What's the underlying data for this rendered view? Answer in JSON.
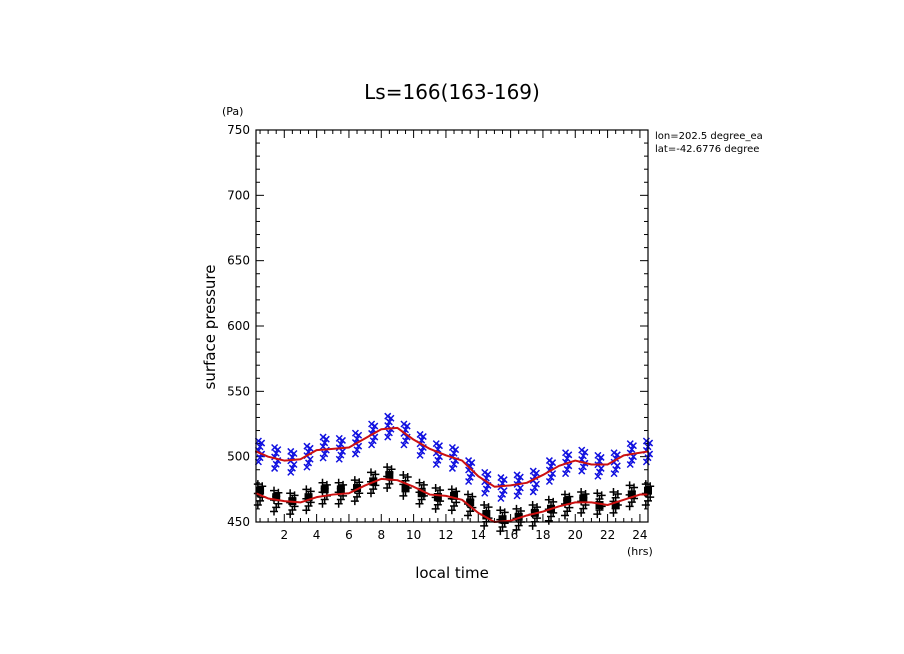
{
  "chart_data": {
    "type": "scatter",
    "title": "Ls=166(163-169)",
    "ylabel": "surface pressure",
    "yunit": "(Pa)",
    "xlabel": "local time",
    "xunit": "(hrs)",
    "annotation": [
      "lon=202.5 degree_ea",
      "lat=-42.6776 degree"
    ],
    "xlim": [
      0.25,
      24.5
    ],
    "ylim": [
      450,
      750
    ],
    "yticks": [
      450,
      500,
      550,
      600,
      650,
      700,
      750
    ],
    "xticks": [
      2,
      4,
      6,
      8,
      10,
      12,
      14,
      16,
      18,
      20,
      22,
      24
    ],
    "colors": {
      "blue": "#1010e0",
      "red": "#cc1010",
      "black": "#000000"
    },
    "series": [
      {
        "marker": "x",
        "color": "#1010e0",
        "x": [
          0.5,
          1.5,
          2.5,
          3.5,
          4.5,
          5.5,
          6.5,
          7.5,
          8.5,
          9.5,
          10.5,
          11.5,
          12.5,
          13.5,
          14.5,
          15.5,
          16.5,
          17.5,
          18.5,
          19.5,
          20.5,
          21.5,
          22.5,
          23.5,
          24.5
        ],
        "center": [
          504,
          499,
          496,
          500,
          507,
          506,
          510,
          517,
          523,
          517,
          509,
          502,
          499,
          489,
          480,
          476,
          478,
          481,
          489,
          495,
          497,
          493,
          495,
          502,
          504
        ],
        "spread": 8
      },
      {
        "marker": "+",
        "color": "#000000",
        "x": [
          0.5,
          1.5,
          2.5,
          3.5,
          4.5,
          5.5,
          6.5,
          7.5,
          8.5,
          9.5,
          10.5,
          11.5,
          12.5,
          13.5,
          14.5,
          15.5,
          16.5,
          17.5,
          18.5,
          19.5,
          20.5,
          21.5,
          22.5,
          23.5,
          24.5
        ],
        "center": [
          471,
          466,
          464,
          467,
          472,
          472,
          474,
          480,
          484,
          478,
          472,
          468,
          467,
          463,
          455,
          451,
          452,
          455,
          459,
          463,
          465,
          464,
          465,
          470,
          471
        ],
        "spread": 8
      },
      {
        "marker": "square",
        "color": "#000000",
        "x": [
          0.5,
          1.5,
          2.5,
          3.5,
          4.5,
          5.5,
          6.5,
          7.5,
          8.5,
          9.5,
          10.5,
          11.5,
          12.5,
          13.5,
          14.5,
          15.5,
          16.5,
          17.5,
          18.5,
          19.5,
          20.5,
          21.5,
          22.5,
          23.5,
          24.5
        ],
        "y": [
          474,
          469,
          466,
          469,
          475,
          475,
          476,
          481,
          486,
          476,
          472,
          469,
          470,
          465,
          455,
          452,
          454,
          457,
          460,
          466,
          468,
          463,
          463,
          471,
          474
        ]
      },
      {
        "marker": "line",
        "color": "#cc1010",
        "x": [
          0.25,
          1,
          2,
          3,
          4,
          5,
          6,
          7,
          8,
          9,
          10,
          11,
          12,
          13,
          14,
          15,
          16,
          17,
          18,
          19,
          20,
          21,
          22,
          23,
          24,
          24.5
        ],
        "y": [
          504,
          500,
          497,
          498,
          505,
          506,
          507,
          514,
          521,
          522,
          513,
          506,
          501,
          497,
          485,
          477,
          478,
          480,
          486,
          493,
          497,
          494,
          494,
          501,
          503,
          504
        ]
      },
      {
        "marker": "line",
        "color": "#cc1010",
        "x": [
          0.25,
          1,
          2,
          3,
          4,
          5,
          6,
          7,
          8,
          9,
          10,
          11,
          12,
          13,
          14,
          15,
          16,
          17,
          18,
          19,
          20,
          21,
          22,
          23,
          24,
          24.5
        ],
        "y": [
          472,
          468,
          466,
          465,
          469,
          471,
          472,
          478,
          483,
          482,
          477,
          471,
          470,
          467,
          457,
          450,
          451,
          455,
          458,
          462,
          465,
          465,
          463,
          467,
          471,
          471
        ]
      }
    ]
  }
}
